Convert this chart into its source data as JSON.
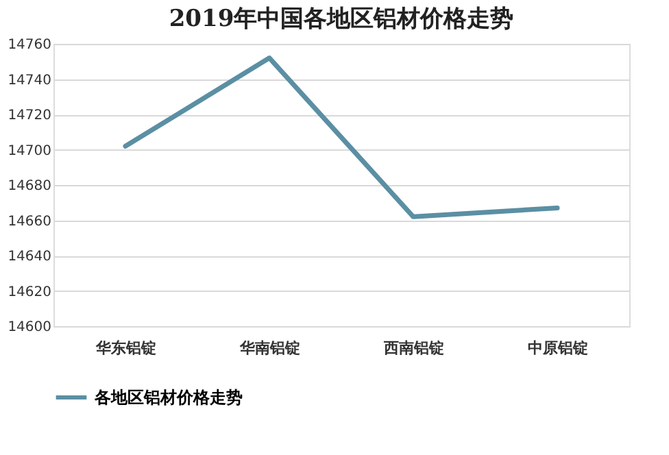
{
  "chart_data": {
    "type": "line",
    "title": "2019年中国各地区铝材价格走势",
    "categories": [
      "华东铝锭",
      "华南铝锭",
      "西南铝锭",
      "中原铝锭"
    ],
    "series": [
      {
        "name": "各地区铝材价格走势",
        "color": "#5b8fa3",
        "values": [
          14702,
          14752,
          14662,
          14667
        ]
      }
    ],
    "ylim": [
      14600,
      14760
    ],
    "yticks": [
      14600,
      14620,
      14640,
      14660,
      14680,
      14700,
      14720,
      14740,
      14760
    ],
    "grid": "y",
    "legend": "bottom",
    "marker": "none",
    "line_style": "solid"
  }
}
